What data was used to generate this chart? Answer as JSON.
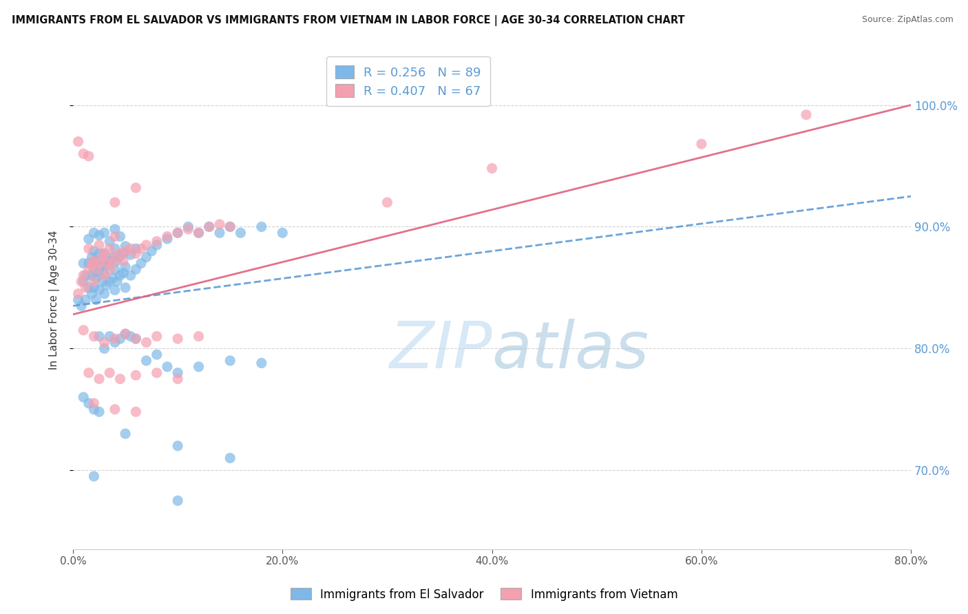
{
  "title": "IMMIGRANTS FROM EL SALVADOR VS IMMIGRANTS FROM VIETNAM IN LABOR FORCE | AGE 30-34 CORRELATION CHART",
  "source": "Source: ZipAtlas.com",
  "ylabel_left": "In Labor Force | Age 30-34",
  "legend_label1": "Immigrants from El Salvador",
  "legend_label2": "Immigrants from Vietnam",
  "R1": 0.256,
  "N1": 89,
  "R2": 0.407,
  "N2": 67,
  "color1": "#7EB8E8",
  "color2": "#F4A0B0",
  "line_color1": "#5B9BD5",
  "line_color2": "#E06080",
  "x_min": 0.0,
  "x_max": 0.8,
  "y_min": 0.635,
  "y_max": 1.045,
  "watermark_zip": "ZIP",
  "watermark_atlas": "atlas",
  "trendline1_x": [
    0.0,
    0.8
  ],
  "trendline1_y": [
    0.835,
    0.925
  ],
  "trendline2_x": [
    0.0,
    0.8
  ],
  "trendline2_y": [
    0.828,
    1.0
  ],
  "scatter1": [
    [
      0.005,
      0.84
    ],
    [
      0.008,
      0.835
    ],
    [
      0.01,
      0.855
    ],
    [
      0.01,
      0.87
    ],
    [
      0.012,
      0.84
    ],
    [
      0.012,
      0.86
    ],
    [
      0.015,
      0.85
    ],
    [
      0.015,
      0.87
    ],
    [
      0.015,
      0.89
    ],
    [
      0.018,
      0.845
    ],
    [
      0.018,
      0.86
    ],
    [
      0.018,
      0.875
    ],
    [
      0.02,
      0.85
    ],
    [
      0.02,
      0.865
    ],
    [
      0.02,
      0.88
    ],
    [
      0.02,
      0.895
    ],
    [
      0.022,
      0.84
    ],
    [
      0.022,
      0.858
    ],
    [
      0.022,
      0.872
    ],
    [
      0.025,
      0.848
    ],
    [
      0.025,
      0.863
    ],
    [
      0.025,
      0.878
    ],
    [
      0.025,
      0.893
    ],
    [
      0.028,
      0.855
    ],
    [
      0.028,
      0.87
    ],
    [
      0.03,
      0.845
    ],
    [
      0.03,
      0.862
    ],
    [
      0.03,
      0.878
    ],
    [
      0.03,
      0.895
    ],
    [
      0.032,
      0.852
    ],
    [
      0.032,
      0.868
    ],
    [
      0.035,
      0.855
    ],
    [
      0.035,
      0.872
    ],
    [
      0.035,
      0.888
    ],
    [
      0.038,
      0.858
    ],
    [
      0.038,
      0.875
    ],
    [
      0.04,
      0.848
    ],
    [
      0.04,
      0.865
    ],
    [
      0.04,
      0.882
    ],
    [
      0.04,
      0.898
    ],
    [
      0.042,
      0.855
    ],
    [
      0.042,
      0.872
    ],
    [
      0.045,
      0.86
    ],
    [
      0.045,
      0.876
    ],
    [
      0.045,
      0.892
    ],
    [
      0.048,
      0.862
    ],
    [
      0.048,
      0.878
    ],
    [
      0.05,
      0.85
    ],
    [
      0.05,
      0.867
    ],
    [
      0.05,
      0.884
    ],
    [
      0.055,
      0.86
    ],
    [
      0.055,
      0.877
    ],
    [
      0.06,
      0.865
    ],
    [
      0.06,
      0.882
    ],
    [
      0.065,
      0.87
    ],
    [
      0.07,
      0.875
    ],
    [
      0.075,
      0.88
    ],
    [
      0.08,
      0.885
    ],
    [
      0.09,
      0.89
    ],
    [
      0.1,
      0.895
    ],
    [
      0.11,
      0.9
    ],
    [
      0.12,
      0.895
    ],
    [
      0.13,
      0.9
    ],
    [
      0.14,
      0.895
    ],
    [
      0.15,
      0.9
    ],
    [
      0.16,
      0.895
    ],
    [
      0.18,
      0.9
    ],
    [
      0.2,
      0.895
    ],
    [
      0.025,
      0.81
    ],
    [
      0.03,
      0.8
    ],
    [
      0.035,
      0.81
    ],
    [
      0.04,
      0.805
    ],
    [
      0.045,
      0.808
    ],
    [
      0.05,
      0.812
    ],
    [
      0.055,
      0.81
    ],
    [
      0.06,
      0.808
    ],
    [
      0.07,
      0.79
    ],
    [
      0.08,
      0.795
    ],
    [
      0.09,
      0.785
    ],
    [
      0.1,
      0.78
    ],
    [
      0.12,
      0.785
    ],
    [
      0.15,
      0.79
    ],
    [
      0.18,
      0.788
    ],
    [
      0.01,
      0.76
    ],
    [
      0.015,
      0.755
    ],
    [
      0.02,
      0.75
    ],
    [
      0.025,
      0.748
    ],
    [
      0.05,
      0.73
    ],
    [
      0.1,
      0.72
    ],
    [
      0.15,
      0.71
    ],
    [
      0.02,
      0.695
    ],
    [
      0.1,
      0.675
    ]
  ],
  "scatter2": [
    [
      0.005,
      0.845
    ],
    [
      0.008,
      0.855
    ],
    [
      0.01,
      0.86
    ],
    [
      0.012,
      0.85
    ],
    [
      0.015,
      0.865
    ],
    [
      0.015,
      0.882
    ],
    [
      0.018,
      0.87
    ],
    [
      0.02,
      0.855
    ],
    [
      0.02,
      0.872
    ],
    [
      0.022,
      0.865
    ],
    [
      0.025,
      0.87
    ],
    [
      0.025,
      0.885
    ],
    [
      0.028,
      0.875
    ],
    [
      0.03,
      0.86
    ],
    [
      0.03,
      0.878
    ],
    [
      0.032,
      0.87
    ],
    [
      0.035,
      0.865
    ],
    [
      0.035,
      0.882
    ],
    [
      0.038,
      0.87
    ],
    [
      0.04,
      0.875
    ],
    [
      0.04,
      0.892
    ],
    [
      0.045,
      0.878
    ],
    [
      0.048,
      0.872
    ],
    [
      0.05,
      0.88
    ],
    [
      0.055,
      0.882
    ],
    [
      0.06,
      0.878
    ],
    [
      0.065,
      0.882
    ],
    [
      0.07,
      0.885
    ],
    [
      0.08,
      0.888
    ],
    [
      0.09,
      0.892
    ],
    [
      0.1,
      0.895
    ],
    [
      0.11,
      0.898
    ],
    [
      0.12,
      0.895
    ],
    [
      0.13,
      0.9
    ],
    [
      0.14,
      0.902
    ],
    [
      0.15,
      0.9
    ],
    [
      0.01,
      0.815
    ],
    [
      0.02,
      0.81
    ],
    [
      0.03,
      0.805
    ],
    [
      0.04,
      0.808
    ],
    [
      0.05,
      0.812
    ],
    [
      0.06,
      0.808
    ],
    [
      0.07,
      0.805
    ],
    [
      0.08,
      0.81
    ],
    [
      0.1,
      0.808
    ],
    [
      0.12,
      0.81
    ],
    [
      0.015,
      0.78
    ],
    [
      0.025,
      0.775
    ],
    [
      0.035,
      0.78
    ],
    [
      0.045,
      0.775
    ],
    [
      0.06,
      0.778
    ],
    [
      0.08,
      0.78
    ],
    [
      0.1,
      0.775
    ],
    [
      0.02,
      0.755
    ],
    [
      0.04,
      0.75
    ],
    [
      0.06,
      0.748
    ],
    [
      0.005,
      0.97
    ],
    [
      0.01,
      0.96
    ],
    [
      0.015,
      0.958
    ],
    [
      0.04,
      0.92
    ],
    [
      0.06,
      0.932
    ],
    [
      0.3,
      0.92
    ],
    [
      0.4,
      0.948
    ],
    [
      0.6,
      0.968
    ],
    [
      0.7,
      0.992
    ]
  ]
}
